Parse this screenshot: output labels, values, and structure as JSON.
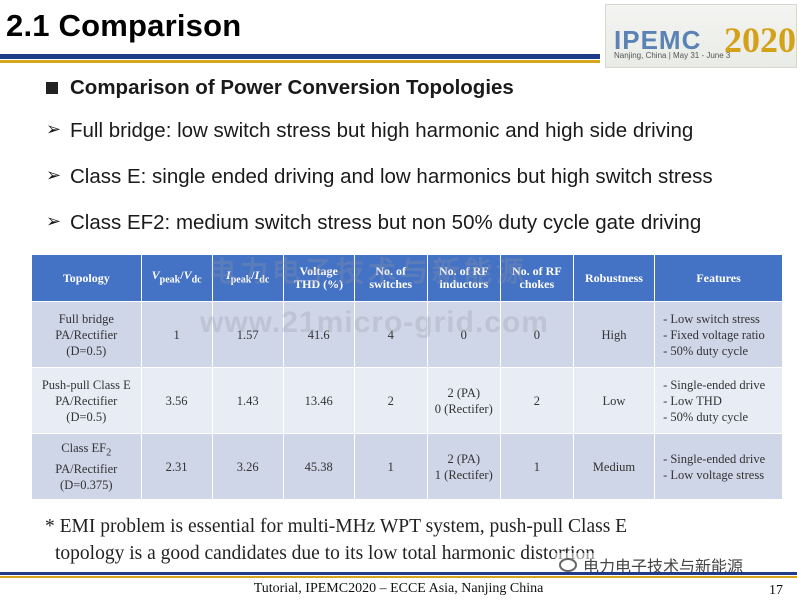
{
  "title": "2.1 Comparison",
  "logo": {
    "text": "IPEMC",
    "year": "2020",
    "subtitle": "Nanjing, China | May 31 - June 3"
  },
  "heading": "Comparison of Power Conversion Topologies",
  "bullets": [
    "Full bridge: low switch stress but high harmonic and high side driving",
    "Class E: single ended driving and low harmonics but high switch stress",
    "Class EF2: medium switch stress but non 50% duty cycle gate driving"
  ],
  "table": {
    "headers": {
      "topology": "Topology",
      "vpeak_sub": "peak",
      "vdc_sub": "dc",
      "ipeak_sub": "peak",
      "idc_sub": "dc",
      "thd": "Voltage THD (%)",
      "switches": "No. of switches",
      "inductors": "No. of RF inductors",
      "chokes": "No. of RF chokes",
      "robustness": "Robustness",
      "features": "Features"
    },
    "rows": [
      {
        "topology": [
          "Full bridge",
          "PA/Rectifier",
          "(D=0.5)"
        ],
        "vratio": "1",
        "iratio": "1.57",
        "thd": "41.6",
        "switches": "4",
        "inductors": [
          "0"
        ],
        "chokes": "0",
        "robustness": "High",
        "features": [
          "- Low switch stress",
          "- Fixed voltage ratio",
          "- 50% duty cycle"
        ]
      },
      {
        "topology": [
          "Push-pull Class E",
          "PA/Rectifier",
          "(D=0.5)"
        ],
        "vratio": "3.56",
        "iratio": "1.43",
        "thd": "13.46",
        "switches": "2",
        "inductors": [
          "2 (PA)",
          "0 (Rectifer)"
        ],
        "chokes": "2",
        "robustness": "Low",
        "features": [
          "- Single-ended drive",
          "- Low THD",
          "- 50% duty cycle"
        ]
      },
      {
        "topology": [
          "Class EF",
          "2",
          "PA/Rectifier",
          "(D=0.375)"
        ],
        "vratio": "2.31",
        "iratio": "3.26",
        "thd": "45.38",
        "switches": "1",
        "inductors": [
          "2 (PA)",
          "1 (Rectifer)"
        ],
        "chokes": "1",
        "robustness": "Medium",
        "features": [
          "- Single-ended drive",
          "- Low voltage stress"
        ]
      }
    ]
  },
  "watermark": {
    "line1": "电力电子技术与新能源",
    "line2": "www.21micro-grid.com"
  },
  "note": {
    "line1": "* EMI problem is essential for multi-MHz WPT system, push-pull Class E",
    "line2": "topology is a good candidates due to its low total harmonic distortion"
  },
  "wechat_label": "电力电子技术与新能源",
  "footer": "Tutorial, IPEMC2020 – ECCE Asia, Nanjing China",
  "page_number": "17"
}
